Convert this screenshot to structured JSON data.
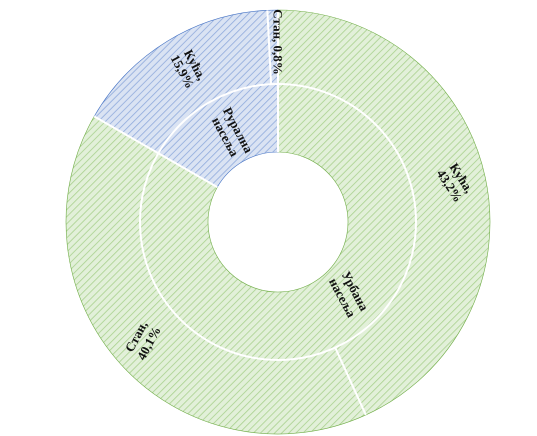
{
  "chart_data": {
    "type": "pie",
    "title": "",
    "legend": "none",
    "outer_ring": {
      "slices": [
        {
          "category": "Кућа",
          "value": 43.2,
          "label": "Кућа,\n43,2%",
          "group": "urban"
        },
        {
          "category": "Стан",
          "value": 40.1,
          "label": "Стан,\n40,1%",
          "group": "urban"
        },
        {
          "category": "Кућа",
          "value": 15.9,
          "label": "Кућа,\n15,9%",
          "group": "rural"
        },
        {
          "category": "Стан",
          "value": 0.8,
          "label": "Стан, 0,8%",
          "group": "rural"
        }
      ]
    },
    "inner_ring": {
      "slices": [
        {
          "category": "Урбана насеља",
          "value": 83.3,
          "label": "Урбана\nнасеља",
          "group": "urban"
        },
        {
          "category": "Рурална насеља",
          "value": 16.7,
          "label": "Рурална\nнасеља",
          "group": "rural"
        }
      ]
    },
    "colors": {
      "urban_fill": "#e2f0d9",
      "urban_hatch": "#a9d18e",
      "urban_stroke": "#70ad47",
      "rural_fill": "#dae3f3",
      "rural_hatch": "#8faadc",
      "rural_stroke": "#4472c4",
      "border": "#ffffff"
    }
  }
}
